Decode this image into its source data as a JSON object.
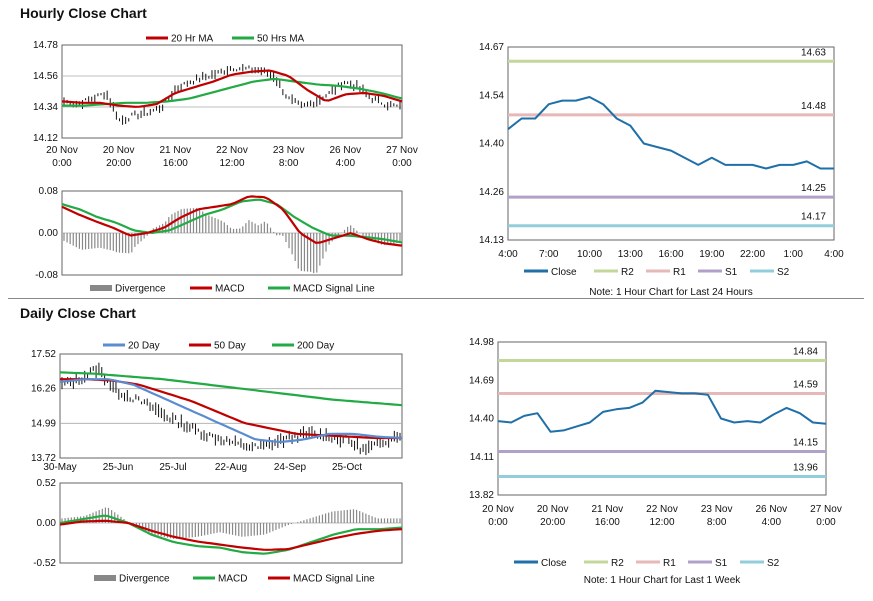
{
  "sections": {
    "hourly_title": "Hourly Close Chart",
    "daily_title": "Daily Close Chart"
  },
  "colors": {
    "price": "#111111",
    "ma_red": "#c00000",
    "ma_green": "#22aa44",
    "ma_blue": "#5b8bd0",
    "close_line": "#1f6fa8",
    "r2": "#c4d79b",
    "r1": "#e6b8b7",
    "s1": "#b1a0c7",
    "s2": "#92cddc",
    "divergence": "#888888"
  },
  "chart_data": [
    {
      "id": "hourly_price",
      "type": "line",
      "title": "",
      "legend": [
        "20 Hr MA",
        "50 Hrs MA"
      ],
      "ylim": [
        14.12,
        14.78
      ],
      "yticks": [
        "14.78",
        "14.56",
        "14.34",
        "14.12"
      ],
      "xticks": [
        [
          "20 Nov",
          "0:00"
        ],
        [
          "20 Nov",
          "20:00"
        ],
        [
          "21 Nov",
          "16:00"
        ],
        [
          "22 Nov",
          "12:00"
        ],
        [
          "23 Nov",
          "8:00"
        ],
        [
          "26 Nov",
          "4:00"
        ],
        [
          "27 Nov",
          "0:00"
        ]
      ],
      "price_anchors": [
        14.38,
        14.36,
        14.4,
        14.44,
        14.24,
        14.28,
        14.3,
        14.34,
        14.47,
        14.52,
        14.55,
        14.58,
        14.62,
        14.61,
        14.6,
        14.56,
        14.4,
        14.34,
        14.38,
        14.44,
        14.52,
        14.48,
        14.4,
        14.36,
        14.34
      ],
      "ma20_anchors": [
        14.38,
        14.37,
        14.37,
        14.35,
        14.34,
        14.36,
        14.44,
        14.48,
        14.52,
        14.57,
        14.59,
        14.6,
        14.56,
        14.46,
        14.38,
        14.43,
        14.44,
        14.42,
        14.38
      ],
      "ma50_anchors": [
        14.35,
        14.35,
        14.36,
        14.37,
        14.37,
        14.38,
        14.4,
        14.44,
        14.48,
        14.52,
        14.54,
        14.52,
        14.5,
        14.49,
        14.47,
        14.44,
        14.4
      ]
    },
    {
      "id": "hourly_macd",
      "type": "line",
      "legend": [
        "Divergence",
        "MACD",
        "MACD Signal Line"
      ],
      "ylim": [
        -0.08,
        0.08
      ],
      "yticks": [
        "0.08",
        "0.00",
        "-0.08"
      ],
      "macd_anchors": [
        0.05,
        0.035,
        0.022,
        0.01,
        -0.005,
        0.0,
        0.01,
        0.03,
        0.045,
        0.05,
        0.055,
        0.07,
        0.068,
        0.045,
        0.0,
        -0.02,
        -0.01,
        0.0,
        -0.012,
        -0.02,
        -0.024
      ],
      "signal_anchors": [
        0.055,
        0.045,
        0.03,
        0.02,
        0.005,
        0.0,
        0.005,
        0.02,
        0.035,
        0.045,
        0.06,
        0.064,
        0.055,
        0.03,
        0.01,
        -0.005,
        -0.005,
        -0.008,
        -0.012,
        -0.018
      ]
    },
    {
      "id": "hourly_intraday",
      "type": "line",
      "ylim": [
        14.13,
        14.67
      ],
      "yticks": [
        "14.67",
        "14.54",
        "14.40",
        "14.26",
        "14.13"
      ],
      "xticks": [
        "4:00",
        "7:00",
        "10:00",
        "13:00",
        "16:00",
        "19:00",
        "22:00",
        "1:00",
        "4:00"
      ],
      "close": [
        14.44,
        14.47,
        14.47,
        14.51,
        14.52,
        14.52,
        14.53,
        14.51,
        14.47,
        14.45,
        14.4,
        14.39,
        14.38,
        14.36,
        14.34,
        14.36,
        14.34,
        14.34,
        14.34,
        14.33,
        14.34,
        14.34,
        14.35,
        14.33,
        14.33
      ],
      "levels": [
        {
          "name": "R2",
          "value": 14.63,
          "label": "14.63"
        },
        {
          "name": "R1",
          "value": 14.48,
          "label": "14.48"
        },
        {
          "name": "S1",
          "value": 14.25,
          "label": "14.25"
        },
        {
          "name": "S2",
          "value": 14.17,
          "label": "14.17"
        }
      ],
      "legend": [
        "Close",
        "R2",
        "R1",
        "S1",
        "S2"
      ],
      "note": "Note: 1 Hour Chart for Last 24 Hours"
    },
    {
      "id": "daily_price",
      "type": "line",
      "legend": [
        "20 Day",
        "50 Day",
        "200 Day"
      ],
      "ylim": [
        13.72,
        17.52
      ],
      "yticks": [
        "17.52",
        "16.26",
        "14.99",
        "13.72"
      ],
      "xticks": [
        "30-May",
        "25-Jun",
        "25-Jul",
        "22-Aug",
        "24-Sep",
        "25-Oct"
      ],
      "price_anchors": [
        16.4,
        16.6,
        17.0,
        16.2,
        15.9,
        15.6,
        15.2,
        14.9,
        14.6,
        14.4,
        14.2,
        14.1,
        14.3,
        14.5,
        14.6,
        14.5,
        14.4,
        14.0,
        14.3,
        14.6
      ],
      "ma20_anchors": [
        16.5,
        16.6,
        16.6,
        16.4,
        16.0,
        15.6,
        15.2,
        14.8,
        14.4,
        14.3,
        14.4,
        14.6,
        14.6,
        14.5,
        14.45
      ],
      "ma50_anchors": [
        16.6,
        16.6,
        16.55,
        16.4,
        16.1,
        15.8,
        15.4,
        15.0,
        14.8,
        14.6,
        14.55,
        14.5,
        14.45,
        14.45
      ],
      "ma200_anchors": [
        16.85,
        16.8,
        16.7,
        16.6,
        16.45,
        16.3,
        16.15,
        16.0,
        15.85,
        15.75,
        15.65
      ]
    },
    {
      "id": "daily_macd",
      "type": "line",
      "legend": [
        "Divergence",
        "MACD",
        "MACD Signal Line"
      ],
      "ylim": [
        -0.52,
        0.52
      ],
      "yticks": [
        "0.52",
        "0.00",
        "-0.52"
      ],
      "macd_anchors": [
        0.0,
        0.05,
        0.1,
        0.0,
        -0.15,
        -0.25,
        -0.3,
        -0.32,
        -0.38,
        -0.4,
        -0.35,
        -0.25,
        -0.15,
        -0.08,
        -0.08,
        -0.06
      ],
      "signal_anchors": [
        -0.02,
        0.02,
        0.03,
        0.0,
        -0.1,
        -0.18,
        -0.24,
        -0.28,
        -0.32,
        -0.35,
        -0.34,
        -0.27,
        -0.2,
        -0.14,
        -0.1,
        -0.08
      ]
    },
    {
      "id": "daily_weekly",
      "type": "line",
      "ylim": [
        13.82,
        14.98
      ],
      "yticks": [
        "14.98",
        "14.69",
        "14.40",
        "14.11",
        "13.82"
      ],
      "xticks": [
        [
          "20 Nov",
          "0:00"
        ],
        [
          "20 Nov",
          "20:00"
        ],
        [
          "21 Nov",
          "16:00"
        ],
        [
          "22 Nov",
          "12:00"
        ],
        [
          "23 Nov",
          "8:00"
        ],
        [
          "26 Nov",
          "4:00"
        ],
        [
          "27 Nov",
          "0:00"
        ]
      ],
      "close": [
        14.38,
        14.37,
        14.42,
        14.44,
        14.3,
        14.31,
        14.34,
        14.37,
        14.45,
        14.47,
        14.48,
        14.52,
        14.61,
        14.6,
        14.59,
        14.59,
        14.58,
        14.4,
        14.37,
        14.38,
        14.37,
        14.43,
        14.48,
        14.44,
        14.37,
        14.36
      ],
      "levels": [
        {
          "name": "R2",
          "value": 14.84,
          "label": "14.84"
        },
        {
          "name": "R1",
          "value": 14.59,
          "label": "14.59"
        },
        {
          "name": "S1",
          "value": 14.15,
          "label": "14.15"
        },
        {
          "name": "S2",
          "value": 13.96,
          "label": "13.96"
        }
      ],
      "legend": [
        "Close",
        "R2",
        "R1",
        "S1",
        "S2"
      ],
      "note": "Note: 1 Hour Chart for Last 1 Week"
    }
  ]
}
